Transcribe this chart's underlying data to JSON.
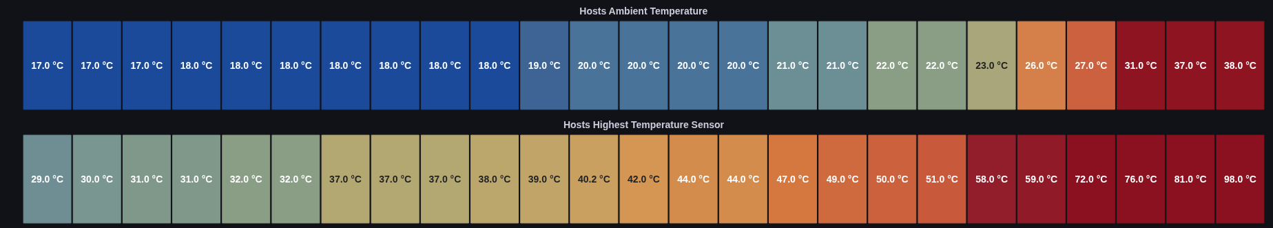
{
  "chart_data": [
    {
      "type": "other",
      "title": "Hosts Ambient Temperature",
      "categories": [
        null,
        null,
        null,
        null,
        null,
        null,
        null,
        null,
        null,
        null,
        null,
        null,
        null,
        null,
        null,
        null,
        null,
        null,
        null,
        null,
        null,
        null,
        null,
        null,
        null
      ],
      "values": [
        17.0,
        17.0,
        17.0,
        18.0,
        18.0,
        18.0,
        18.0,
        18.0,
        18.0,
        18.0,
        19.0,
        20.0,
        20.0,
        20.0,
        20.0,
        21.0,
        21.0,
        22.0,
        22.0,
        23.0,
        26.0,
        27.0,
        31.0,
        37.0,
        38.0
      ],
      "value_labels": [
        "17.0 °C",
        "17.0 °C",
        "17.0 °C",
        "18.0 °C",
        "18.0 °C",
        "18.0 °C",
        "18.0 °C",
        "18.0 °C",
        "18.0 °C",
        "18.0 °C",
        "19.0 °C",
        "20.0 °C",
        "20.0 °C",
        "20.0 °C",
        "20.0 °C",
        "21.0 °C",
        "21.0 °C",
        "22.0 °C",
        "22.0 °C",
        "23.0 °C",
        "26.0 °C",
        "27.0 °C",
        "31.0 °C",
        "37.0 °C",
        "38.0 °C"
      ],
      "colors": [
        "#1b4a9a",
        "#1b4a9a",
        "#1b4a9a",
        "#1b4a9a",
        "#1b4a9a",
        "#1b4a9a",
        "#1b4a9a",
        "#1b4a9a",
        "#1b4a9a",
        "#1b4a9a",
        "#3d6494",
        "#4a7399",
        "#4a7399",
        "#4a7399",
        "#4a7399",
        "#6c8e95",
        "#6c8e95",
        "#8a9d85",
        "#8a9d85",
        "#a8a67a",
        "#d5804a",
        "#cc6140",
        "#8e1422",
        "#8e1422",
        "#8e1422"
      ]
    },
    {
      "type": "other",
      "title": "Hosts Highest Temperature Sensor",
      "categories": [
        null,
        null,
        null,
        null,
        null,
        null,
        null,
        null,
        null,
        null,
        null,
        null,
        null,
        null,
        null,
        null,
        null,
        null,
        null,
        null,
        null,
        null,
        null,
        null,
        null
      ],
      "values": [
        29.0,
        30.0,
        31.0,
        31.0,
        32.0,
        32.0,
        37.0,
        37.0,
        37.0,
        38.0,
        39.0,
        40.2,
        42.0,
        44.0,
        44.0,
        47.0,
        49.0,
        50.0,
        51.0,
        58.0,
        59.0,
        72.0,
        76.0,
        81.0,
        98.0
      ],
      "value_labels": [
        "29.0 °C",
        "30.0 °C",
        "31.0 °C",
        "31.0 °C",
        "32.0 °C",
        "32.0 °C",
        "37.0 °C",
        "37.0 °C",
        "37.0 °C",
        "38.0 °C",
        "39.0 °C",
        "40.2 °C",
        "42.0 °C",
        "44.0 °C",
        "44.0 °C",
        "47.0 °C",
        "49.0 °C",
        "50.0 °C",
        "51.0 °C",
        "58.0 °C",
        "59.0 °C",
        "72.0 °C",
        "76.0 °C",
        "81.0 °C",
        "98.0 °C"
      ],
      "colors": [
        "#6e8e94",
        "#7a9690",
        "#7f988a",
        "#7f988a",
        "#8a9d85",
        "#8a9d85",
        "#b4a872",
        "#b4a872",
        "#b4a872",
        "#bba66c",
        "#c0a468",
        "#c9a060",
        "#d49652",
        "#d48c4c",
        "#d48c4c",
        "#d5783f",
        "#cf6a3e",
        "#cc613d",
        "#c8593b",
        "#931e2b",
        "#901a28",
        "#8b1020",
        "#8b1020",
        "#8b1020",
        "#8b1020"
      ]
    }
  ]
}
